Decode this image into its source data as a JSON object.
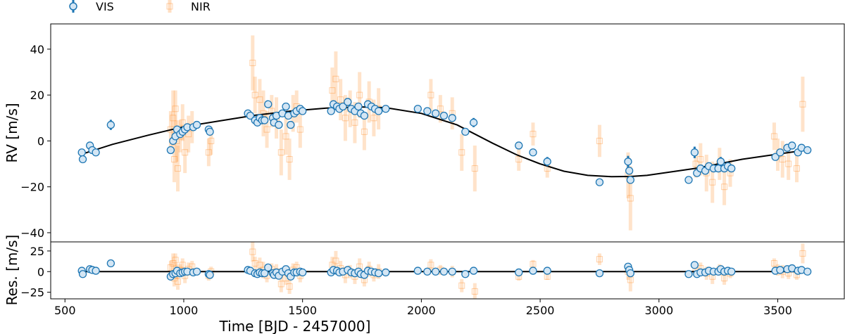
{
  "colors": {
    "vis": "#1f77b4",
    "vis_fill": "#d4e6f4",
    "nir": "#ff7f0e",
    "model": "#000000"
  },
  "legend": {
    "entries": [
      {
        "label": "VIS",
        "color": "#1f77b4"
      },
      {
        "label": "NIR",
        "color": "#ff7f0e"
      }
    ],
    "placement": "top-left"
  },
  "chart_data": [
    {
      "type": "scatter",
      "panel": "rv",
      "xlabel": "",
      "ylabel": "RV [m/s]",
      "xlim": [
        440,
        3780
      ],
      "ylim": [
        -44,
        51
      ],
      "yticks": [
        -40,
        -20,
        0,
        20,
        40
      ],
      "grid": false,
      "model": {
        "name": "",
        "x": [
          570,
          700,
          850,
          1000,
          1150,
          1300,
          1450,
          1600,
          1750,
          1850,
          2000,
          2150,
          2300,
          2400,
          2500,
          2600,
          2700,
          2800,
          2880,
          2950,
          3050,
          3150,
          3250,
          3350,
          3450,
          3550,
          3620
        ],
        "y": [
          -5.8,
          -1.5,
          2.5,
          6.2,
          8.7,
          11.2,
          13.0,
          14.3,
          14.8,
          14.5,
          12.0,
          7.0,
          -1.0,
          -6.0,
          -10.0,
          -13.2,
          -15.0,
          -15.6,
          -15.5,
          -15.0,
          -13.5,
          -12.0,
          -10.0,
          -8.0,
          -6.5,
          -5.0,
          -4.0
        ]
      },
      "series": [
        {
          "name": "VIS",
          "x": [
            571,
            575,
            605,
            615,
            630,
            693,
            945,
            955,
            965,
            972,
            985,
            995,
            1005,
            1015,
            1040,
            1055,
            1105,
            1110,
            1270,
            1280,
            1300,
            1310,
            1320,
            1330,
            1340,
            1355,
            1375,
            1380,
            1390,
            1400,
            1415,
            1430,
            1440,
            1450,
            1465,
            1475,
            1490,
            1500,
            1620,
            1630,
            1645,
            1655,
            1670,
            1690,
            1705,
            1720,
            1735,
            1745,
            1760,
            1775,
            1790,
            1805,
            1820,
            1850,
            1985,
            2025,
            2060,
            2095,
            2130,
            2185,
            2220,
            2410,
            2470,
            2530,
            2750,
            2870,
            2875,
            2880,
            3125,
            3150,
            3160,
            3175,
            3195,
            3210,
            3230,
            3250,
            3260,
            3275,
            3290,
            3305,
            3490,
            3510,
            3540,
            3560,
            3585,
            3600,
            3625
          ],
          "y": [
            -5,
            -8,
            -2,
            -4,
            -5,
            7,
            -4,
            0,
            2,
            5,
            3,
            4,
            5,
            6,
            6,
            7,
            5,
            4,
            12,
            11,
            9,
            8,
            10,
            9,
            9,
            16,
            10,
            8,
            11,
            7,
            12,
            15,
            11,
            7,
            12,
            13,
            14,
            13,
            13,
            16,
            15,
            14,
            15,
            17,
            14,
            13,
            15,
            12,
            11,
            16,
            15,
            14,
            13,
            14,
            14,
            13,
            12,
            11,
            10,
            4,
            8,
            -2,
            -5,
            -9,
            -18,
            -9,
            -13,
            -17,
            -17,
            -5,
            -14,
            -12,
            -13,
            -11,
            -12,
            -12,
            -9,
            -12,
            -11,
            -12,
            -7,
            -5,
            -3,
            -2,
            -5,
            -3,
            -4
          ],
          "error": [
            1.2,
            1.2,
            1.5,
            1.5,
            1.2,
            2.2,
            1.3,
            1.2,
            1.2,
            1.2,
            1.2,
            1.2,
            1.2,
            1.2,
            1.2,
            1.2,
            1.5,
            1.3,
            1.2,
            1.2,
            1.2,
            1.2,
            1.2,
            1.2,
            1.2,
            1.5,
            1.2,
            1.2,
            1.2,
            1.2,
            1.2,
            1.5,
            1.2,
            1.2,
            1.2,
            1.2,
            1.2,
            1.2,
            1.2,
            1.5,
            1.2,
            1.2,
            1.2,
            1.5,
            1.2,
            1.2,
            1.2,
            1.2,
            1.2,
            1.5,
            1.2,
            1.2,
            1.2,
            1.2,
            1.2,
            1.2,
            1.2,
            1.2,
            1.2,
            1.5,
            2.0,
            1.2,
            1.2,
            2.0,
            1.2,
            2.5,
            1.5,
            1.5,
            1.5,
            2.5,
            1.5,
            1.2,
            1.2,
            1.2,
            1.2,
            1.2,
            2.0,
            1.2,
            1.2,
            1.2,
            1.5,
            1.5,
            1.5,
            1.5,
            1.5,
            1.5,
            1.5
          ]
        },
        {
          "name": "NIR",
          "x": [
            945,
            955,
            960,
            965,
            970,
            975,
            985,
            995,
            1005,
            1020,
            1035,
            1105,
            1115,
            1290,
            1300,
            1320,
            1335,
            1350,
            1370,
            1390,
            1410,
            1430,
            1445,
            1460,
            1475,
            1490,
            1625,
            1640,
            1660,
            1680,
            1700,
            1720,
            1740,
            1760,
            1780,
            1800,
            1820,
            2040,
            2080,
            2130,
            2170,
            2225,
            2410,
            2470,
            2530,
            2750,
            2870,
            2880,
            3155,
            3175,
            3200,
            3225,
            3255,
            3275,
            3300,
            3485,
            3500,
            3520,
            3545,
            3580,
            3605
          ],
          "y": [
            5,
            10,
            -8,
            14,
            0,
            -12,
            2,
            8,
            -5,
            3,
            6,
            -5,
            0,
            34,
            20,
            18,
            12,
            5,
            13,
            10,
            -5,
            2,
            -8,
            12,
            15,
            5,
            22,
            27,
            18,
            10,
            14,
            8,
            20,
            4,
            17,
            10,
            14,
            20,
            14,
            12,
            -5,
            -12,
            -8,
            3,
            -12,
            0,
            -15,
            -25,
            -10,
            -8,
            -14,
            -18,
            -10,
            -20,
            -14,
            2,
            -6,
            -8,
            -10,
            -12,
            16
          ],
          "error": [
            8,
            12,
            10,
            8,
            9,
            10,
            7,
            8,
            9,
            8,
            7,
            6,
            6,
            12,
            8,
            9,
            10,
            8,
            7,
            9,
            10,
            8,
            9,
            8,
            7,
            8,
            10,
            12,
            9,
            10,
            8,
            9,
            10,
            8,
            9,
            8,
            9,
            7,
            6,
            7,
            8,
            10,
            5,
            5,
            4,
            7,
            10,
            14,
            6,
            7,
            8,
            9,
            7,
            8,
            6,
            6,
            7,
            8,
            7,
            6,
            12
          ]
        }
      ]
    },
    {
      "type": "scatter",
      "panel": "residuals",
      "xlabel": "Time [BJD - 2457000]",
      "ylabel": "Res. [m/s]",
      "xlim": [
        440,
        3780
      ],
      "ylim": [
        -33,
        36
      ],
      "xticks": [
        500,
        1000,
        1500,
        2000,
        2500,
        3000,
        3500
      ],
      "yticks": [
        -25,
        0,
        25
      ],
      "grid": false,
      "model": {
        "name": "",
        "x": [
          570,
          3625
        ],
        "y": [
          0,
          0
        ]
      },
      "series": [
        {
          "name": "VIS",
          "x": [
            571,
            575,
            605,
            615,
            630,
            693,
            945,
            955,
            965,
            972,
            985,
            995,
            1005,
            1015,
            1040,
            1055,
            1105,
            1110,
            1270,
            1280,
            1300,
            1310,
            1320,
            1330,
            1340,
            1355,
            1375,
            1380,
            1390,
            1400,
            1415,
            1430,
            1440,
            1450,
            1465,
            1475,
            1490,
            1500,
            1620,
            1630,
            1645,
            1655,
            1670,
            1690,
            1705,
            1720,
            1735,
            1745,
            1760,
            1775,
            1790,
            1805,
            1820,
            1850,
            1985,
            2025,
            2060,
            2095,
            2130,
            2185,
            2220,
            2410,
            2470,
            2530,
            2750,
            2870,
            2875,
            2880,
            3125,
            3150,
            3160,
            3175,
            3195,
            3210,
            3230,
            3250,
            3260,
            3275,
            3290,
            3305,
            3490,
            3510,
            3540,
            3560,
            3585,
            3600,
            3625
          ],
          "y": [
            1,
            -3,
            3,
            2,
            1,
            10,
            -6,
            -3,
            -2,
            1,
            -2,
            -1,
            0,
            0,
            -1,
            0,
            -3,
            -4,
            2,
            1,
            -2,
            -3,
            -1,
            -2,
            -2,
            5,
            -2,
            -4,
            -1,
            -5,
            0,
            3,
            -2,
            -6,
            -1,
            -1,
            0,
            -1,
            -1,
            2,
            1,
            -1,
            0,
            2,
            -1,
            -2,
            0,
            -3,
            -4,
            1,
            0,
            -1,
            -2,
            -1,
            1,
            0,
            0,
            0,
            0,
            -3,
            1,
            -1,
            1,
            1,
            -2,
            6,
            2,
            -2,
            -3,
            8,
            -3,
            -1,
            -1,
            1,
            0,
            0,
            3,
            0,
            1,
            0,
            1,
            2,
            3,
            4,
            1,
            2,
            0
          ],
          "error": [
            1.2,
            1.2,
            1.5,
            1.5,
            1.2,
            2.2,
            1.3,
            1.2,
            1.2,
            1.2,
            1.2,
            1.2,
            1.2,
            1.2,
            1.2,
            1.2,
            1.5,
            1.3,
            1.2,
            1.2,
            1.2,
            1.2,
            1.2,
            1.2,
            1.2,
            1.5,
            1.2,
            1.2,
            1.2,
            1.2,
            1.2,
            1.5,
            1.2,
            1.2,
            1.2,
            1.2,
            1.2,
            1.2,
            1.2,
            1.5,
            1.2,
            1.2,
            1.2,
            1.5,
            1.2,
            1.2,
            1.2,
            1.2,
            1.2,
            1.5,
            1.2,
            1.2,
            1.2,
            1.2,
            1.2,
            1.2,
            1.2,
            1.2,
            1.2,
            1.5,
            2.0,
            1.2,
            1.2,
            2.0,
            1.2,
            2.5,
            1.5,
            1.5,
            1.5,
            2.5,
            1.5,
            1.2,
            1.2,
            1.2,
            1.2,
            1.2,
            2.0,
            1.2,
            1.2,
            1.2,
            1.5,
            1.5,
            1.5,
            1.5,
            1.5,
            1.5,
            1.5
          ]
        },
        {
          "name": "NIR",
          "x": [
            945,
            955,
            960,
            965,
            970,
            975,
            985,
            995,
            1005,
            1020,
            1035,
            1105,
            1115,
            1290,
            1300,
            1320,
            1335,
            1350,
            1370,
            1390,
            1410,
            1430,
            1445,
            1460,
            1475,
            1490,
            1625,
            1640,
            1660,
            1680,
            1700,
            1720,
            1740,
            1760,
            1780,
            1800,
            1820,
            2040,
            2080,
            2130,
            2170,
            2225,
            2410,
            2470,
            2530,
            2750,
            2870,
            2880,
            3155,
            3175,
            3200,
            3225,
            3255,
            3275,
            3300,
            3485,
            3500,
            3520,
            3545,
            3580,
            3605
          ],
          "y": [
            5,
            10,
            -8,
            14,
            0,
            -12,
            2,
            8,
            -5,
            3,
            6,
            -5,
            0,
            24,
            10,
            8,
            2,
            -5,
            3,
            0,
            -15,
            -8,
            -18,
            2,
            5,
            -5,
            8,
            13,
            4,
            -4,
            0,
            -6,
            6,
            -10,
            3,
            -4,
            0,
            8,
            2,
            0,
            -17,
            -24,
            -6,
            9,
            -6,
            15,
            0,
            -10,
            2,
            4,
            -2,
            -6,
            2,
            -8,
            -2,
            10,
            2,
            0,
            -2,
            -4,
            22
          ],
          "error": [
            8,
            12,
            10,
            8,
            9,
            10,
            7,
            8,
            9,
            8,
            7,
            6,
            6,
            12,
            8,
            9,
            10,
            8,
            7,
            9,
            10,
            8,
            9,
            8,
            7,
            8,
            10,
            12,
            9,
            10,
            8,
            9,
            10,
            8,
            9,
            8,
            9,
            7,
            6,
            7,
            8,
            10,
            5,
            5,
            4,
            7,
            10,
            14,
            6,
            7,
            8,
            9,
            7,
            8,
            6,
            6,
            7,
            8,
            7,
            6,
            12
          ]
        }
      ]
    }
  ]
}
